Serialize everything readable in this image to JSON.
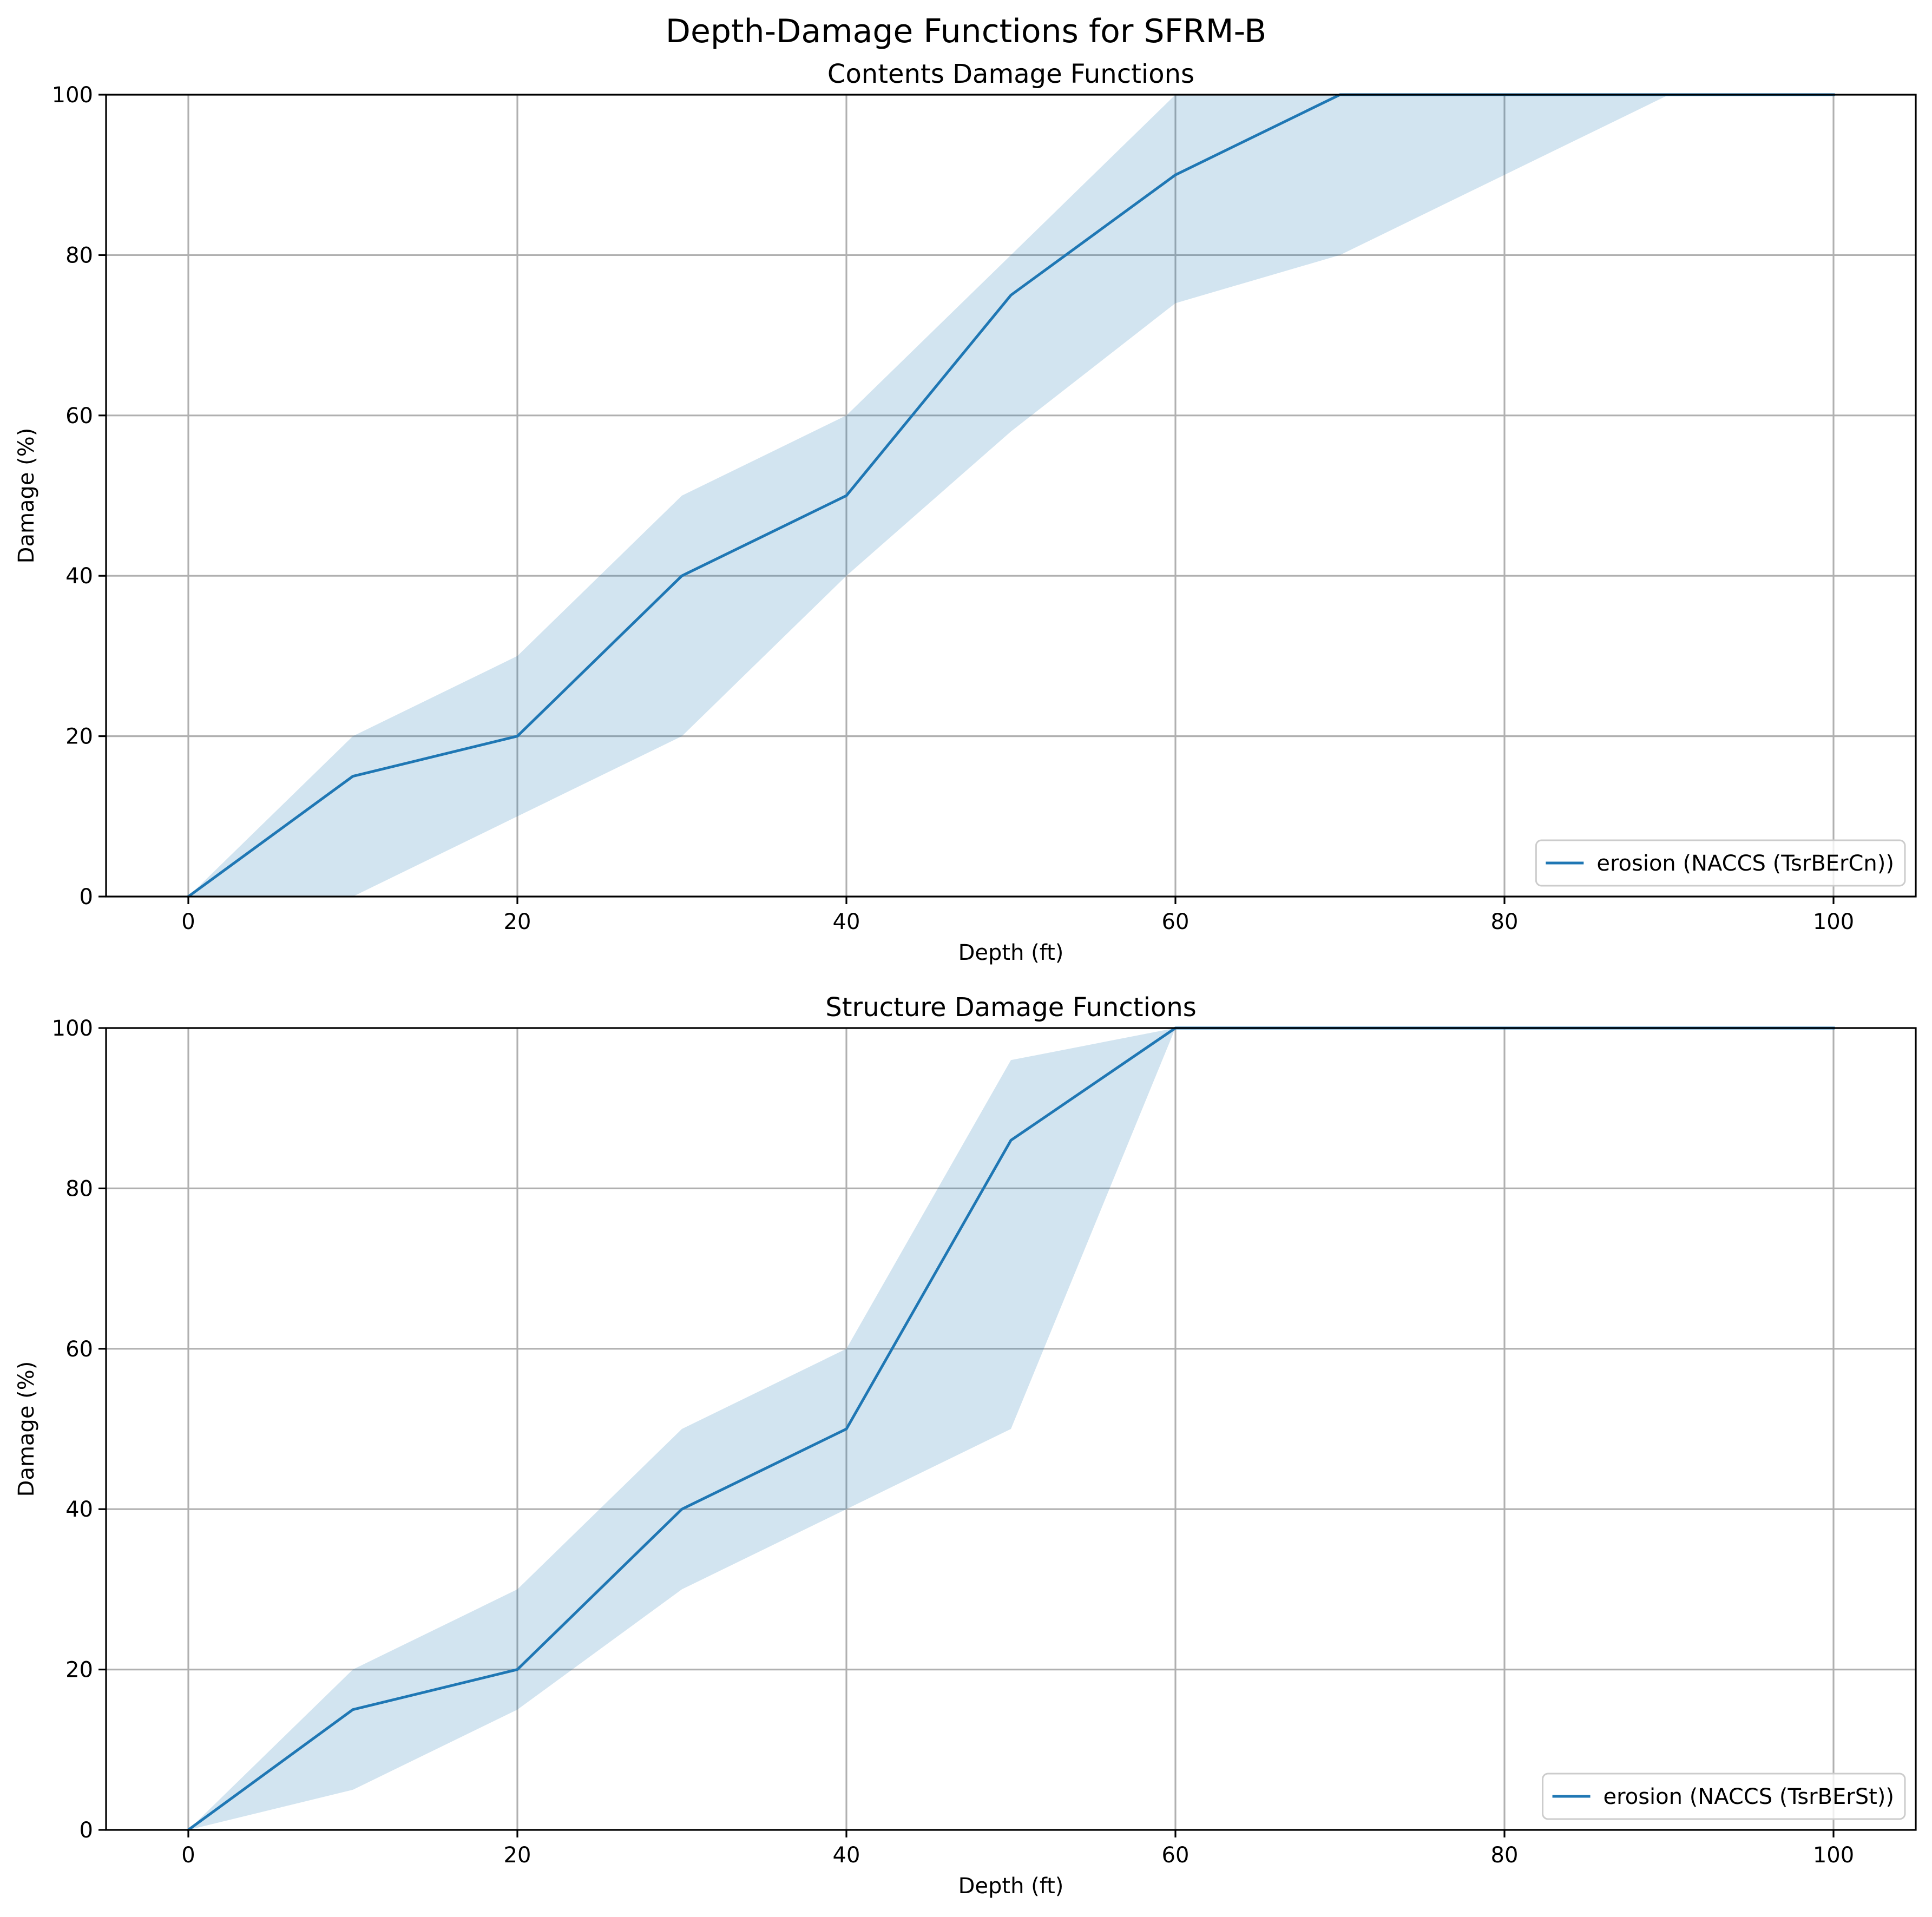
{
  "figure": {
    "suptitle": "Depth-Damage Functions for SFRM-B"
  },
  "colors": {
    "line": "#1f77b4",
    "band": "#1f77b4",
    "grid": "#b0b0b0",
    "axis": "#000000"
  },
  "chart_data": [
    {
      "type": "line",
      "title": "Contents Damage Functions",
      "xlabel": "Depth (ft)",
      "ylabel": "Damage (%)",
      "xlim": [
        -5,
        105
      ],
      "ylim": [
        0,
        100
      ],
      "xticks": [
        0,
        20,
        40,
        60,
        80,
        100
      ],
      "yticks": [
        0,
        20,
        40,
        60,
        80,
        100
      ],
      "grid": true,
      "legend_position": "lower right",
      "series": [
        {
          "name": "erosion (NACCS (TsrBErCn))",
          "x": [
            0,
            10,
            20,
            30,
            40,
            50,
            60,
            70,
            80,
            90,
            100
          ],
          "y": [
            0,
            15,
            20,
            40,
            50,
            75,
            90,
            100,
            100,
            100,
            100
          ],
          "y_lower": [
            0,
            0,
            10,
            20,
            40,
            58,
            74,
            80,
            90,
            100,
            100
          ],
          "y_upper": [
            0,
            20,
            30,
            50,
            60,
            80,
            100,
            100,
            100,
            100,
            100
          ]
        }
      ]
    },
    {
      "type": "line",
      "title": "Structure Damage Functions",
      "xlabel": "Depth (ft)",
      "ylabel": "Damage (%)",
      "xlim": [
        -5,
        105
      ],
      "ylim": [
        0,
        100
      ],
      "xticks": [
        0,
        20,
        40,
        60,
        80,
        100
      ],
      "yticks": [
        0,
        20,
        40,
        60,
        80,
        100
      ],
      "grid": true,
      "legend_position": "lower right",
      "series": [
        {
          "name": "erosion (NACCS (TsrBErSt))",
          "x": [
            0,
            10,
            20,
            30,
            40,
            50,
            60,
            70,
            80,
            90,
            100
          ],
          "y": [
            0,
            15,
            20,
            40,
            50,
            86,
            100,
            100,
            100,
            100,
            100
          ],
          "y_lower": [
            0,
            5,
            15,
            30,
            40,
            50,
            100,
            100,
            100,
            100,
            100
          ],
          "y_upper": [
            0,
            20,
            30,
            50,
            60,
            96,
            100,
            100,
            100,
            100,
            100
          ]
        }
      ]
    }
  ]
}
